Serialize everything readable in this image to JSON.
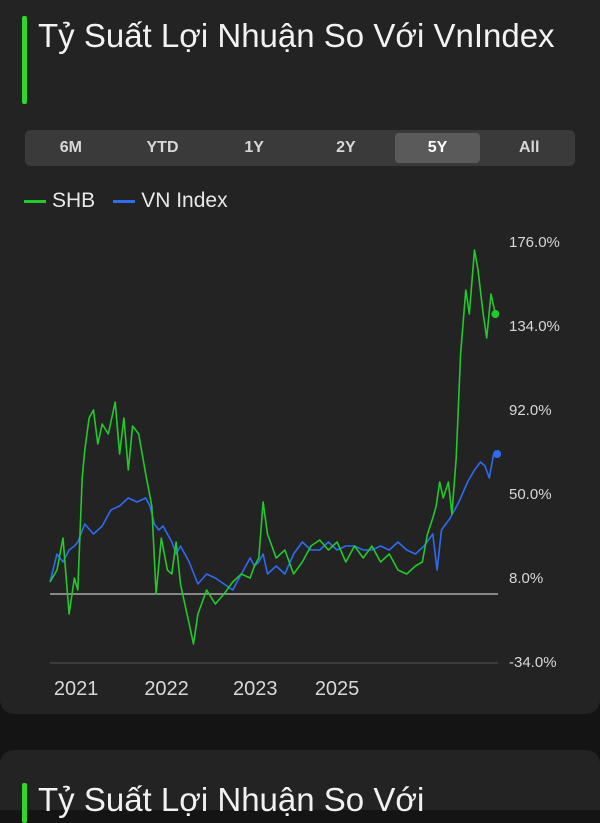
{
  "card": {
    "title": "Tỷ Suất Lợi Nhuận So Với VnIndex"
  },
  "tabs": [
    {
      "label": "6M",
      "active": false
    },
    {
      "label": "YTD",
      "active": false
    },
    {
      "label": "1Y",
      "active": false
    },
    {
      "label": "2Y",
      "active": false
    },
    {
      "label": "5Y",
      "active": true
    },
    {
      "label": "All",
      "active": false
    }
  ],
  "next_card": {
    "title": "Tỷ Suất Lợi Nhuận So Với"
  },
  "chart_data": {
    "type": "line",
    "title": "",
    "xlabel": "",
    "ylabel": "",
    "x_ticks": [
      "2021",
      "2022",
      "2023",
      "2025"
    ],
    "y_ticks": [
      "176.0%",
      "134.0%",
      "92.0%",
      "50.0%",
      "8.0%",
      "-34.0%"
    ],
    "ylim": [
      -34,
      176
    ],
    "xlim": [
      2020.6,
      2025.75
    ],
    "grid": false,
    "legend_position": "top-left",
    "reference_line": 0,
    "colors": {
      "SHB": "#22c92a",
      "VN Index": "#2d6cf0",
      "reference": "#aaaaaa"
    },
    "series": [
      {
        "name": "SHB",
        "x": [
          2020.6,
          2020.68,
          2020.75,
          2020.82,
          2020.88,
          2020.92,
          2020.97,
          2021.0,
          2021.05,
          2021.1,
          2021.15,
          2021.2,
          2021.27,
          2021.35,
          2021.4,
          2021.45,
          2021.5,
          2021.55,
          2021.62,
          2021.7,
          2021.77,
          2021.82,
          2021.88,
          2021.95,
          2022.0,
          2022.05,
          2022.1,
          2022.15,
          2022.2,
          2022.25,
          2022.3,
          2022.4,
          2022.5,
          2022.6,
          2022.7,
          2022.8,
          2022.9,
          2022.95,
          2023.0,
          2023.05,
          2023.1,
          2023.2,
          2023.3,
          2023.4,
          2023.5,
          2023.6,
          2023.7,
          2023.8,
          2023.9,
          2024.0,
          2024.1,
          2024.2,
          2024.3,
          2024.4,
          2024.5,
          2024.6,
          2024.7,
          2024.8,
          2024.88,
          2024.94,
          2025.0,
          2025.04,
          2025.08,
          2025.12,
          2025.18,
          2025.22,
          2025.27,
          2025.32,
          2025.38,
          2025.42,
          2025.48,
          2025.52,
          2025.58,
          2025.62,
          2025.67,
          2025.72
        ],
        "y": [
          6,
          12,
          28,
          -10,
          8,
          2,
          58,
          72,
          88,
          92,
          75,
          85,
          80,
          96,
          70,
          88,
          62,
          84,
          80,
          60,
          44,
          0,
          28,
          12,
          10,
          26,
          5,
          -5,
          -15,
          -25,
          -10,
          2,
          -5,
          0,
          6,
          10,
          8,
          14,
          18,
          46,
          30,
          18,
          22,
          10,
          16,
          24,
          27,
          22,
          26,
          16,
          24,
          18,
          24,
          16,
          20,
          12,
          10,
          14,
          16,
          30,
          38,
          44,
          56,
          48,
          56,
          40,
          68,
          120,
          152,
          140,
          172,
          162,
          140,
          128,
          150,
          140
        ]
      },
      {
        "name": "VN Index",
        "x": [
          2020.6,
          2020.68,
          2020.75,
          2020.82,
          2020.88,
          2020.92,
          2021.0,
          2021.1,
          2021.2,
          2021.3,
          2021.4,
          2021.5,
          2021.6,
          2021.7,
          2021.75,
          2021.8,
          2021.85,
          2021.9,
          2021.95,
          2022.0,
          2022.05,
          2022.1,
          2022.2,
          2022.3,
          2022.4,
          2022.5,
          2022.6,
          2022.7,
          2022.8,
          2022.9,
          2022.95,
          2023.0,
          2023.05,
          2023.1,
          2023.2,
          2023.3,
          2023.4,
          2023.5,
          2023.6,
          2023.7,
          2023.8,
          2023.9,
          2024.0,
          2024.1,
          2024.2,
          2024.3,
          2024.4,
          2024.5,
          2024.6,
          2024.7,
          2024.8,
          2024.9,
          2025.0,
          2025.05,
          2025.1,
          2025.2,
          2025.3,
          2025.4,
          2025.48,
          2025.55,
          2025.6,
          2025.65,
          2025.7,
          2025.74
        ],
        "y": [
          6,
          20,
          16,
          22,
          24,
          26,
          35,
          30,
          34,
          42,
          44,
          48,
          46,
          48,
          44,
          35,
          32,
          34,
          30,
          26,
          20,
          24,
          16,
          5,
          10,
          8,
          5,
          2,
          10,
          18,
          14,
          16,
          20,
          10,
          14,
          10,
          20,
          26,
          22,
          22,
          26,
          22,
          24,
          24,
          22,
          22,
          24,
          22,
          26,
          22,
          20,
          24,
          30,
          12,
          32,
          38,
          46,
          56,
          62,
          66,
          64,
          58,
          70,
          70
        ]
      }
    ]
  }
}
